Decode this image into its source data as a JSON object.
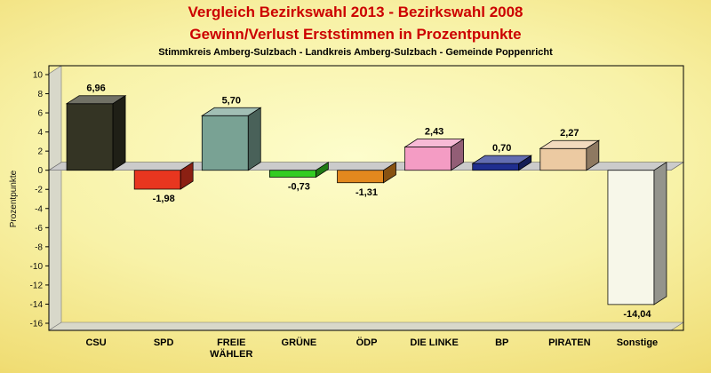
{
  "title_line1": "Vergleich Bezirkswahl 2013 - Bezirkswahl 2008",
  "title_line2": "Gewinn/Verlust Erststimmen in Prozentpunkte",
  "subtitle": "Stimmkreis Amberg-Sulzbach - Landkreis Amberg-Sulzbach - Gemeinde Poppenricht",
  "title_color": "#cc0000",
  "chart_data": {
    "type": "bar",
    "style": "3d",
    "categories": [
      "CSU",
      "SPD",
      "FREIE WÄHLER",
      "GRÜNE",
      "ÖDP",
      "DIE LINKE",
      "BP",
      "PIRATEN",
      "Sonstige"
    ],
    "category_lines": [
      [
        "CSU"
      ],
      [
        "SPD"
      ],
      [
        "FREIE",
        "WÄHLER"
      ],
      [
        "GRÜNE"
      ],
      [
        "ÖDP"
      ],
      [
        "DIE LINKE"
      ],
      [
        "BP"
      ],
      [
        "PIRATEN"
      ],
      [
        "Sonstige"
      ]
    ],
    "values": [
      6.96,
      -1.98,
      5.7,
      -0.73,
      -1.31,
      2.43,
      0.7,
      2.27,
      -14.04
    ],
    "value_labels": [
      "6,96",
      "-1,98",
      "5,70",
      "-0,73",
      "-1,31",
      "2,43",
      "0,70",
      "2,27",
      "-14,04"
    ],
    "bar_colors": [
      "#343424",
      "#e8361f",
      "#79a294",
      "#33cc22",
      "#e2881e",
      "#f49cc4",
      "#1f2e8f",
      "#eccaa2",
      "#f7f7e9"
    ],
    "ylabel": "Prozentpunkte",
    "ylim": [
      -16,
      10
    ],
    "ytick_step": 2,
    "grid": false,
    "legend": "none",
    "wall_color": "#d8d8ca",
    "zero_band_color": "#cbcbcb",
    "border_color": "#000000"
  }
}
